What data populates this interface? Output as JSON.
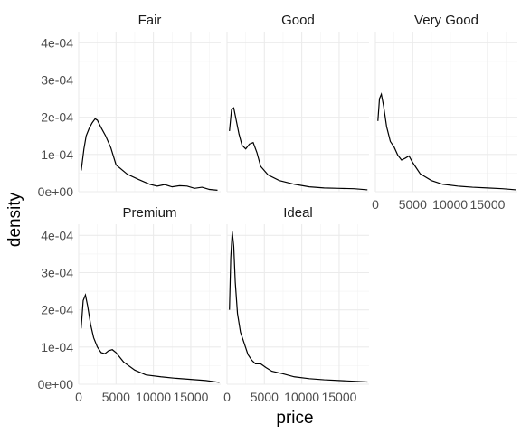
{
  "chart_data": {
    "type": "line",
    "xlabel": "price",
    "ylabel": "density",
    "xlim": [
      0,
      19000
    ],
    "ylim": [
      0,
      0.00043
    ],
    "y_ticks": [
      {
        "value": 0,
        "label": "0e+00"
      },
      {
        "value": 0.0001,
        "label": "1e-04"
      },
      {
        "value": 0.0002,
        "label": "2e-04"
      },
      {
        "value": 0.0003,
        "label": "3e-04"
      },
      {
        "value": 0.0004,
        "label": "4e-04"
      }
    ],
    "x_ticks": [
      {
        "value": 0,
        "label": "0"
      },
      {
        "value": 5000,
        "label": "5000"
      },
      {
        "value": 10000,
        "label": "10000"
      },
      {
        "value": 15000,
        "label": "15000"
      }
    ],
    "grid": true,
    "facets": [
      {
        "name": "Fair",
        "x": [
          337,
          700,
          1000,
          1400,
          1800,
          2200,
          2500,
          3000,
          3600,
          4300,
          5000,
          6500,
          8000,
          9500,
          10500,
          11500,
          12500,
          13500,
          14500,
          15500,
          16500,
          17500,
          18574
        ],
        "y": [
          5.7e-05,
          0.000115,
          0.00015,
          0.00017,
          0.000185,
          0.000196,
          0.000192,
          0.000172,
          0.00015,
          0.000118,
          7.2e-05,
          4.7e-05,
          3.3e-05,
          2e-05,
          1.5e-05,
          1.9e-05,
          1.3e-05,
          1.6e-05,
          1.5e-05,
          9e-06,
          1.2e-05,
          6e-06,
          4e-06
        ]
      },
      {
        "name": "Good",
        "x": [
          327,
          600,
          900,
          1200,
          1600,
          2000,
          2500,
          3000,
          3500,
          4000,
          4500,
          5500,
          7000,
          9000,
          11000,
          13000,
          15000,
          17000,
          18788
        ],
        "y": [
          0.000163,
          0.00022,
          0.000225,
          0.000195,
          0.000155,
          0.000125,
          0.000115,
          0.000128,
          0.000132,
          0.000105,
          6.8e-05,
          4.5e-05,
          3e-05,
          2e-05,
          1.3e-05,
          1e-05,
          9e-06,
          8e-06,
          5e-06
        ]
      },
      {
        "name": "Very Good",
        "x": [
          336,
          550,
          800,
          1100,
          1500,
          2000,
          2500,
          3000,
          3500,
          4000,
          4500,
          5000,
          6000,
          7500,
          9000,
          11000,
          13000,
          15000,
          17000,
          18818
        ],
        "y": [
          0.00019,
          0.00025,
          0.000262,
          0.00023,
          0.000175,
          0.000135,
          0.00012,
          9.8e-05,
          8.5e-05,
          9e-05,
          9.6e-05,
          7.8e-05,
          4.8e-05,
          3e-05,
          2e-05,
          1.5e-05,
          1.2e-05,
          1e-05,
          8e-06,
          5e-06
        ]
      },
      {
        "name": "Premium",
        "x": [
          326,
          600,
          900,
          1200,
          1600,
          2000,
          2500,
          3000,
          3500,
          4000,
          4500,
          5000,
          6000,
          7500,
          9000,
          11000,
          13000,
          15000,
          17000,
          18823
        ],
        "y": [
          0.00015,
          0.000225,
          0.00024,
          0.00021,
          0.00016,
          0.000125,
          0.0001,
          8.5e-05,
          8.2e-05,
          9e-05,
          9.3e-05,
          8.5e-05,
          6e-05,
          3.8e-05,
          2.5e-05,
          2e-05,
          1.6e-05,
          1.3e-05,
          1e-05,
          5e-06
        ]
      },
      {
        "name": "Ideal",
        "x": [
          326,
          500,
          700,
          900,
          1100,
          1400,
          1800,
          2300,
          2800,
          3300,
          3800,
          4500,
          5200,
          6000,
          7500,
          9000,
          11000,
          13000,
          15000,
          17000,
          18806
        ],
        "y": [
          0.0002,
          0.00034,
          0.00041,
          0.00037,
          0.000275,
          0.00019,
          0.00014,
          0.00011,
          8e-05,
          6.5e-05,
          5.5e-05,
          5.5e-05,
          4.5e-05,
          3.5e-05,
          2.8e-05,
          2e-05,
          1.5e-05,
          1.2e-05,
          1e-05,
          8e-06,
          6e-06
        ]
      }
    ]
  }
}
